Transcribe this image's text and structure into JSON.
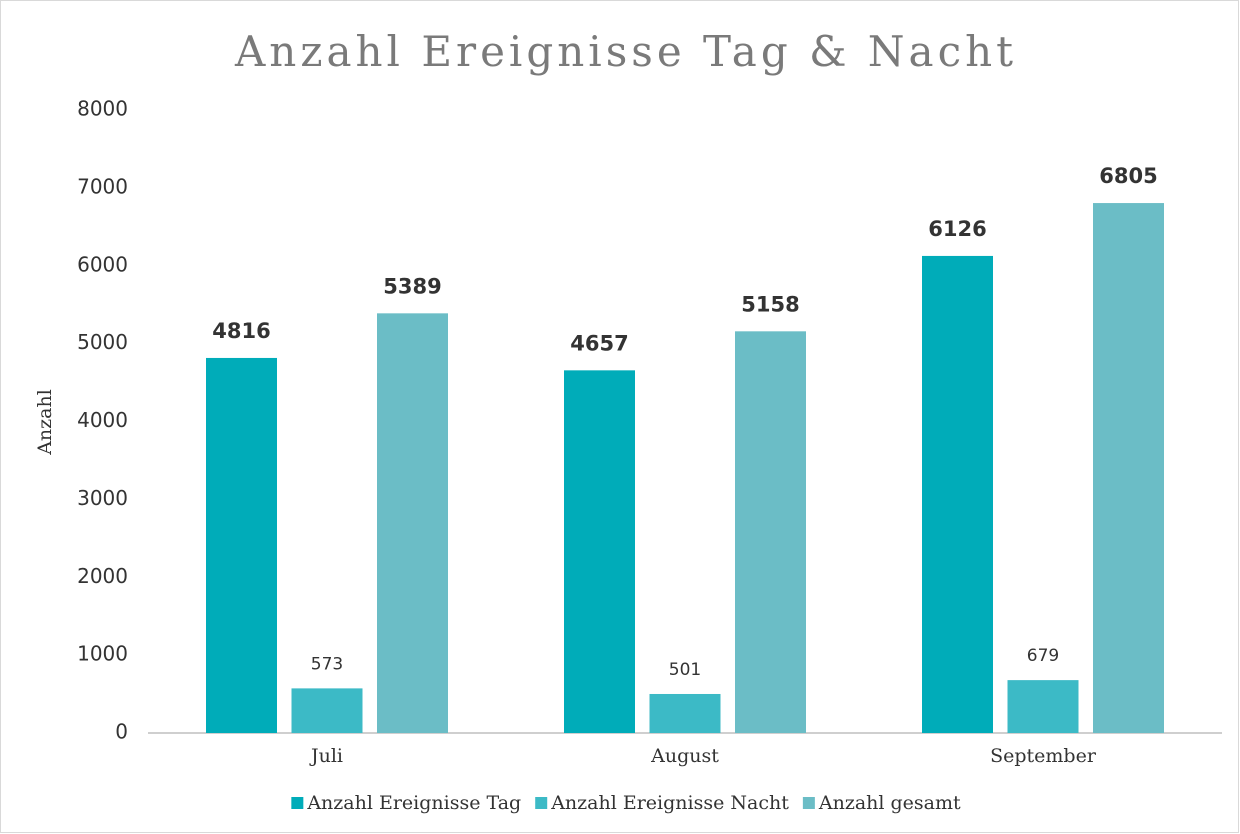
{
  "chart_data": {
    "type": "bar",
    "title": "Anzahl Ereignisse Tag & Nacht",
    "y_label": "Anzahl",
    "categories": [
      "Juli",
      "August",
      "September"
    ],
    "series": [
      {
        "name": "Anzahl Ereignisse Tag",
        "color": "#00acb9",
        "values": [
          4816,
          4657,
          6126
        ]
      },
      {
        "name": "Anzahl Ereignisse Nacht",
        "color": "#3cbac6",
        "values": [
          573,
          501,
          679
        ]
      },
      {
        "name": "Anzahl gesamt",
        "color": "#6bbdc6",
        "values": [
          5389,
          5158,
          6805
        ]
      }
    ],
    "ylim": [
      0,
      8000
    ],
    "yticks": [
      0,
      1000,
      2000,
      3000,
      4000,
      5000,
      6000,
      7000,
      8000
    ],
    "grid": false,
    "legend": "bottom"
  }
}
